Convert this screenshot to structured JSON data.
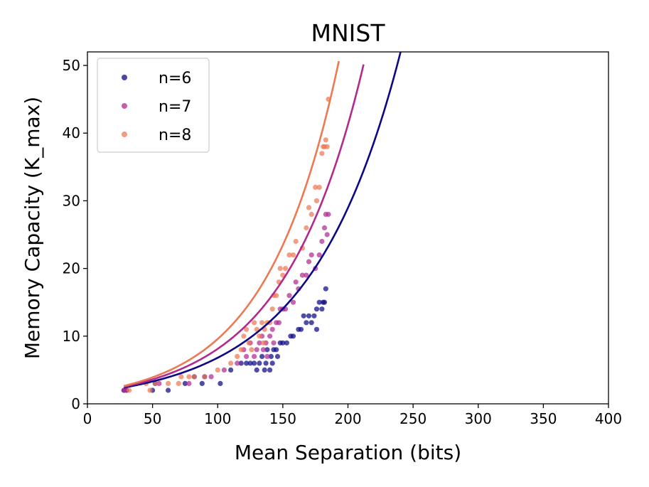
{
  "chart_data": {
    "type": "scatter",
    "title": "MNIST",
    "xlabel": "Mean Separation (bits)",
    "ylabel": "Memory Capacity (K_max)",
    "xlim": [
      0,
      400
    ],
    "ylim": [
      0,
      52
    ],
    "xticks": [
      0,
      50,
      100,
      150,
      200,
      250,
      300,
      350,
      400
    ],
    "yticks": [
      0,
      10,
      20,
      30,
      40,
      50
    ],
    "legend_position": "top-left",
    "series": [
      {
        "name": "n=6",
        "color": "#0d0887",
        "curve": {
          "a": 1.6,
          "b": 0.01448,
          "x_range": [
            28,
            241
          ]
        },
        "points": [
          [
            28,
            2
          ],
          [
            30,
            2
          ],
          [
            50,
            2
          ],
          [
            52,
            3
          ],
          [
            62,
            2
          ],
          [
            75,
            3
          ],
          [
            82,
            4
          ],
          [
            88,
            3
          ],
          [
            90,
            4
          ],
          [
            102,
            3
          ],
          [
            110,
            5
          ],
          [
            118,
            6
          ],
          [
            122,
            6
          ],
          [
            125,
            6
          ],
          [
            128,
            6
          ],
          [
            130,
            5
          ],
          [
            132,
            6
          ],
          [
            134,
            7
          ],
          [
            136,
            5
          ],
          [
            137,
            6
          ],
          [
            138,
            8
          ],
          [
            140,
            5
          ],
          [
            141,
            7
          ],
          [
            142,
            6
          ],
          [
            143,
            8
          ],
          [
            145,
            8
          ],
          [
            146,
            7
          ],
          [
            148,
            9
          ],
          [
            150,
            9
          ],
          [
            153,
            9
          ],
          [
            156,
            10
          ],
          [
            158,
            10
          ],
          [
            162,
            11
          ],
          [
            164,
            11
          ],
          [
            166,
            13
          ],
          [
            168,
            12
          ],
          [
            170,
            13
          ],
          [
            172,
            12
          ],
          [
            174,
            13
          ],
          [
            176,
            14
          ],
          [
            176,
            11
          ],
          [
            178,
            15
          ],
          [
            180,
            14
          ],
          [
            181,
            15
          ],
          [
            182,
            15
          ],
          [
            183,
            17
          ]
        ]
      },
      {
        "name": "n=7",
        "color": "#b12a90",
        "curve": {
          "a": 1.6,
          "b": 0.01625,
          "x_range": [
            28,
            212
          ]
        },
        "points": [
          [
            28,
            2
          ],
          [
            30,
            2
          ],
          [
            55,
            3
          ],
          [
            78,
            3
          ],
          [
            95,
            4
          ],
          [
            105,
            5
          ],
          [
            115,
            6
          ],
          [
            120,
            8
          ],
          [
            122,
            7
          ],
          [
            125,
            9
          ],
          [
            128,
            7
          ],
          [
            130,
            8
          ],
          [
            132,
            9
          ],
          [
            134,
            10
          ],
          [
            135,
            8
          ],
          [
            137,
            9
          ],
          [
            138,
            7
          ],
          [
            140,
            10
          ],
          [
            142,
            11
          ],
          [
            143,
            9
          ],
          [
            145,
            12
          ],
          [
            147,
            12
          ],
          [
            148,
            14
          ],
          [
            150,
            14
          ],
          [
            152,
            14
          ],
          [
            155,
            16
          ],
          [
            158,
            15
          ],
          [
            160,
            18
          ],
          [
            162,
            17
          ],
          [
            165,
            19
          ],
          [
            168,
            19
          ],
          [
            170,
            21
          ],
          [
            172,
            22
          ],
          [
            175,
            20
          ],
          [
            178,
            22
          ],
          [
            180,
            24
          ],
          [
            182,
            26
          ],
          [
            183,
            28
          ],
          [
            184,
            25
          ],
          [
            185,
            28
          ]
        ]
      },
      {
        "name": "n=8",
        "color": "#ed7953",
        "curve": {
          "a": 1.6,
          "b": 0.0179,
          "x_range": [
            28,
            193
          ]
        },
        "points": [
          [
            32,
            2
          ],
          [
            45,
            3
          ],
          [
            48,
            2
          ],
          [
            52,
            3
          ],
          [
            62,
            3
          ],
          [
            70,
            3
          ],
          [
            72,
            4
          ],
          [
            78,
            4
          ],
          [
            82,
            4
          ],
          [
            90,
            4
          ],
          [
            100,
            5
          ],
          [
            110,
            6
          ],
          [
            115,
            7
          ],
          [
            118,
            8
          ],
          [
            120,
            10
          ],
          [
            122,
            11
          ],
          [
            124,
            9
          ],
          [
            126,
            8
          ],
          [
            128,
            12
          ],
          [
            130,
            11
          ],
          [
            132,
            10
          ],
          [
            134,
            12
          ],
          [
            135,
            9
          ],
          [
            136,
            11
          ],
          [
            138,
            12
          ],
          [
            140,
            12
          ],
          [
            142,
            14
          ],
          [
            143,
            16
          ],
          [
            145,
            16
          ],
          [
            147,
            18
          ],
          [
            148,
            20
          ],
          [
            150,
            19
          ],
          [
            152,
            20
          ],
          [
            155,
            22
          ],
          [
            158,
            22
          ],
          [
            160,
            24
          ],
          [
            165,
            23
          ],
          [
            168,
            26
          ],
          [
            170,
            29
          ],
          [
            172,
            28
          ],
          [
            175,
            32
          ],
          [
            176,
            30
          ],
          [
            178,
            32
          ],
          [
            180,
            37
          ],
          [
            181,
            38
          ],
          [
            182,
            38
          ],
          [
            183,
            39
          ],
          [
            184,
            38
          ],
          [
            185,
            45
          ]
        ]
      }
    ]
  }
}
